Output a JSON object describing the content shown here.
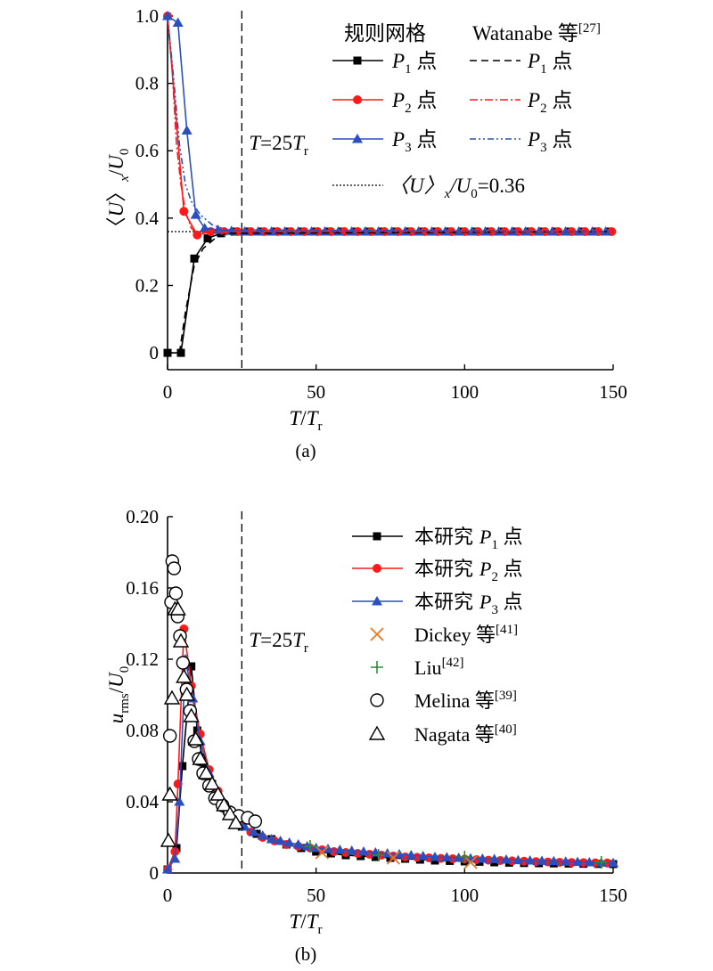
{
  "chart_data": [
    {
      "type": "line",
      "panel_label": "(a)",
      "xlim": [
        0,
        150
      ],
      "ylim": [
        -0.05,
        1.0
      ],
      "xticks": [
        0,
        50,
        100,
        150
      ],
      "yticks": [
        0,
        0.2,
        0.4,
        0.6,
        0.8,
        1.0
      ],
      "xtick_labels": [
        "0",
        "50",
        "100",
        "150"
      ],
      "ytick_labels": [
        "0",
        "0.2",
        "0.4",
        "0.6",
        "0.8",
        "1.0"
      ],
      "xlabel": {
        "main": "T",
        "sep": "/",
        "sub_base": "T",
        "sub": "r"
      },
      "ylabel": {
        "open": "〈",
        "main": "U",
        "close": "〉",
        "sub": "x",
        "sep": "/",
        "base": "U",
        "base_sub": "0"
      },
      "vline": {
        "x": 25,
        "label_main": "T",
        "label_mid": "=25",
        "label_sub_base": "T",
        "label_sub": "r"
      },
      "hline": {
        "y": 0.36,
        "legend_prefix": "〈U〉",
        "legend_sub": "x",
        "legend_mid": "/U",
        "legend_sub2": "0",
        "legend_suffix": "=0.36"
      },
      "legend_headers": {
        "left": "规则网格",
        "right_main": "Watanabe 等",
        "right_sup": "[27]"
      },
      "series": [
        {
          "name": "P1 点",
          "legend_main": "P",
          "legend_sub": "1",
          "legend_suffix": " 点",
          "color": "#000000",
          "marker": "square",
          "x": [
            0,
            4.5,
            9,
            13.5,
            18,
            22.5,
            27,
            31.5,
            36,
            40.5,
            45,
            49.5,
            54,
            58.5,
            63,
            67.5,
            72,
            76.5,
            81,
            85.5,
            90,
            94.5,
            99,
            103.5,
            108,
            112.5,
            117,
            121.5,
            126,
            130.5,
            135,
            139.5,
            144,
            148.5
          ],
          "y": [
            0,
            0,
            0.28,
            0.34,
            0.355,
            0.36,
            0.36,
            0.36,
            0.36,
            0.36,
            0.36,
            0.36,
            0.36,
            0.36,
            0.36,
            0.36,
            0.36,
            0.36,
            0.36,
            0.36,
            0.36,
            0.36,
            0.36,
            0.36,
            0.36,
            0.36,
            0.36,
            0.36,
            0.36,
            0.36,
            0.36,
            0.36,
            0.36,
            0.36
          ]
        },
        {
          "name": "P2 点",
          "legend_main": "P",
          "legend_sub": "2",
          "legend_suffix": " 点",
          "color": "#ff1a1a",
          "marker": "circle",
          "x": [
            0,
            5.5,
            10,
            14.5,
            19,
            23.5,
            28,
            32.5,
            37,
            41.5,
            46,
            50.5,
            55,
            59.5,
            64,
            68.5,
            73,
            77.5,
            82,
            86.5,
            91,
            95.5,
            100,
            104.5,
            109,
            113.5,
            118,
            122.5,
            127,
            131.5,
            136,
            140.5,
            145,
            149.5
          ],
          "y": [
            1.0,
            0.42,
            0.35,
            0.36,
            0.36,
            0.36,
            0.36,
            0.36,
            0.36,
            0.36,
            0.36,
            0.36,
            0.36,
            0.36,
            0.36,
            0.36,
            0.36,
            0.36,
            0.36,
            0.36,
            0.36,
            0.36,
            0.36,
            0.36,
            0.36,
            0.36,
            0.36,
            0.36,
            0.36,
            0.36,
            0.36,
            0.36,
            0.36,
            0.36
          ]
        },
        {
          "name": "P3 点",
          "legend_main": "P",
          "legend_sub": "3",
          "legend_suffix": " 点",
          "color": "#2b4fbf",
          "marker": "triangle",
          "x": [
            0,
            3.5,
            6.5,
            9.5,
            12.5,
            17,
            21.5,
            26,
            30.5,
            35,
            39.5,
            44,
            48.5,
            53,
            57.5,
            62,
            66.5,
            71,
            75.5,
            80,
            84.5,
            89,
            93.5,
            98,
            102.5,
            107,
            111.5,
            116,
            120.5,
            125,
            129.5,
            134,
            138.5,
            143,
            147.5
          ],
          "y": [
            1.0,
            0.98,
            0.66,
            0.41,
            0.37,
            0.365,
            0.362,
            0.36,
            0.36,
            0.36,
            0.36,
            0.36,
            0.36,
            0.36,
            0.36,
            0.36,
            0.36,
            0.36,
            0.36,
            0.36,
            0.36,
            0.36,
            0.36,
            0.36,
            0.36,
            0.36,
            0.36,
            0.36,
            0.36,
            0.36,
            0.36,
            0.36,
            0.36,
            0.36,
            0.36
          ]
        },
        {
          "name": "Watanabe P1 点",
          "legend_main": "P",
          "legend_sub": "1",
          "legend_suffix": " 点",
          "color": "#000000",
          "dash": "8,5",
          "x": [
            4,
            6,
            9,
            12,
            16,
            20,
            150
          ],
          "y": [
            0.0,
            0.12,
            0.26,
            0.31,
            0.34,
            0.355,
            0.36
          ]
        },
        {
          "name": "Watanabe P2 点",
          "legend_main": "P",
          "legend_sub": "2",
          "legend_suffix": " 点",
          "color": "#ff1a1a",
          "dash": "9,3,2,3",
          "x": [
            0,
            1.5,
            3,
            4.5,
            6,
            8,
            10,
            14,
            150
          ],
          "y": [
            1.0,
            0.85,
            0.62,
            0.5,
            0.42,
            0.37,
            0.355,
            0.36,
            0.36
          ]
        },
        {
          "name": "Watanabe P3 点",
          "legend_main": "P",
          "legend_sub": "3",
          "legend_suffix": " 点",
          "color": "#2b4fbf",
          "dash": "7,3,2,3,2,3",
          "x": [
            0,
            2,
            4,
            6,
            8,
            11,
            15,
            20,
            150
          ],
          "y": [
            1.0,
            0.82,
            0.62,
            0.5,
            0.45,
            0.41,
            0.38,
            0.365,
            0.36
          ]
        }
      ]
    },
    {
      "type": "line",
      "panel_label": "(b)",
      "xlim": [
        0,
        150
      ],
      "ylim": [
        0,
        0.2
      ],
      "xticks": [
        0,
        50,
        100,
        150
      ],
      "yticks": [
        0,
        0.04,
        0.08,
        0.12,
        0.16,
        0.2
      ],
      "xtick_labels": [
        "0",
        "50",
        "100",
        "150"
      ],
      "ytick_labels": [
        "0",
        "0.04",
        "0.08",
        "0.12",
        "0.16",
        "0.20"
      ],
      "xlabel": {
        "main": "T",
        "sep": "/",
        "sub_base": "T",
        "sub": "r"
      },
      "ylabel": {
        "main": "u",
        "sub": "rms",
        "sep": "/",
        "base": "U",
        "base_sub": "0"
      },
      "vline": {
        "x": 25,
        "label_main": "T",
        "label_mid": "=25",
        "label_sub_base": "T",
        "label_sub": "r"
      },
      "series": [
        {
          "name": "本研究 P1 点",
          "legend_prefix": "本研究 ",
          "legend_main": "P",
          "legend_sub": "1",
          "legend_suffix": " 点",
          "color": "#000000",
          "marker": "square",
          "x": [
            0,
            3,
            5,
            8,
            10,
            12,
            15,
            20,
            25,
            30,
            35,
            40,
            45,
            50,
            55,
            60,
            65,
            70,
            75,
            80,
            85,
            90,
            95,
            100,
            105,
            110,
            115,
            120,
            125,
            130,
            135,
            140,
            145,
            150
          ],
          "y": [
            0.002,
            0.014,
            0.06,
            0.116,
            0.08,
            0.062,
            0.05,
            0.035,
            0.026,
            0.022,
            0.019,
            0.016,
            0.014,
            0.012,
            0.011,
            0.01,
            0.0095,
            0.009,
            0.0085,
            0.008,
            0.0075,
            0.007,
            0.0068,
            0.0065,
            0.0063,
            0.006,
            0.0058,
            0.0056,
            0.0055,
            0.0054,
            0.0053,
            0.0052,
            0.0051,
            0.005
          ]
        },
        {
          "name": "本研究 P2 点",
          "legend_prefix": "本研究 ",
          "legend_main": "P",
          "legend_sub": "2",
          "legend_suffix": " 点",
          "color": "#ff1a1a",
          "marker": "circle",
          "x": [
            0,
            2.5,
            3.5,
            5.5,
            8,
            11,
            14,
            17,
            20,
            24,
            28,
            32,
            36,
            40,
            44,
            48,
            52,
            56,
            60,
            64,
            68,
            72,
            76,
            80,
            84,
            88,
            92,
            96,
            100,
            104,
            108,
            112,
            116,
            120,
            124,
            128,
            132,
            136,
            140,
            144,
            148
          ],
          "y": [
            0.002,
            0.012,
            0.05,
            0.137,
            0.105,
            0.078,
            0.058,
            0.046,
            0.036,
            0.028,
            0.023,
            0.02,
            0.018,
            0.016,
            0.015,
            0.014,
            0.013,
            0.012,
            0.0115,
            0.011,
            0.0105,
            0.01,
            0.0095,
            0.009,
            0.0088,
            0.0085,
            0.0082,
            0.008,
            0.0078,
            0.0075,
            0.0072,
            0.007,
            0.0068,
            0.0066,
            0.0064,
            0.0062,
            0.006,
            0.0059,
            0.0058,
            0.0057,
            0.0056
          ]
        },
        {
          "name": "本研究 P3 点",
          "legend_prefix": "本研究 ",
          "legend_main": "P",
          "legend_sub": "3",
          "legend_suffix": " 点",
          "color": "#2b4fbf",
          "marker": "triangle",
          "x": [
            0,
            2.5,
            4,
            6,
            8.5,
            11,
            14,
            17,
            20,
            23,
            26,
            29,
            32,
            35,
            38,
            41,
            44,
            47,
            50,
            54,
            58,
            62,
            66,
            70,
            74,
            78,
            82,
            86,
            90,
            94,
            98,
            102,
            106,
            110,
            114,
            118,
            122,
            126,
            130,
            134,
            138,
            142,
            146,
            150
          ],
          "y": [
            0.002,
            0.008,
            0.04,
            0.12,
            0.098,
            0.074,
            0.056,
            0.044,
            0.036,
            0.03,
            0.026,
            0.023,
            0.021,
            0.019,
            0.018,
            0.017,
            0.016,
            0.015,
            0.014,
            0.0135,
            0.013,
            0.0125,
            0.012,
            0.0115,
            0.011,
            0.0105,
            0.01,
            0.0095,
            0.009,
            0.0088,
            0.0085,
            0.0082,
            0.008,
            0.0078,
            0.0075,
            0.0072,
            0.007,
            0.0068,
            0.0066,
            0.0064,
            0.0062,
            0.006,
            0.0058,
            0.0056
          ]
        },
        {
          "name": "Dickey 等",
          "legend_main": "Dickey 等",
          "legend_sup": "[41]",
          "color": "#e87722",
          "marker": "x",
          "markers_only": true,
          "x": [
            52,
            76,
            102
          ],
          "y": [
            0.0115,
            0.0085,
            0.006
          ]
        },
        {
          "name": "Liu",
          "legend_main": "Liu",
          "legend_sup": "[42]",
          "color": "#2e8b3a",
          "marker": "plus",
          "markers_only": true,
          "x": [
            48,
            71,
            100,
            146
          ],
          "y": [
            0.015,
            0.01,
            0.009,
            0.006
          ]
        },
        {
          "name": "Melina 等",
          "legend_main": "Melina 等",
          "legend_sup": "[39]",
          "color": "#000000",
          "marker": "open-circle",
          "markers_only": true,
          "x": [
            0.8,
            1.2,
            1.6,
            2.2,
            2.8,
            3.4,
            4.2,
            5.2,
            6.4,
            7.6,
            9,
            10.5,
            12,
            14,
            16,
            18.5,
            21,
            24,
            27,
            29.5
          ],
          "y": [
            0.077,
            0.152,
            0.175,
            0.171,
            0.157,
            0.144,
            0.133,
            0.118,
            0.103,
            0.091,
            0.074,
            0.064,
            0.056,
            0.049,
            0.042,
            0.038,
            0.034,
            0.032,
            0.031,
            0.029
          ]
        },
        {
          "name": "Nagata 等",
          "legend_main": "Nagata 等",
          "legend_sup": "[40]",
          "color": "#000000",
          "marker": "open-triangle",
          "markers_only": true,
          "x": [
            0.3,
            0.8,
            1.5,
            2.5,
            3.5,
            4.5,
            5.5,
            6.5,
            8,
            9.5,
            11,
            13,
            15,
            17,
            19,
            21,
            23
          ],
          "y": [
            0.018,
            0.044,
            0.098,
            0.148,
            0.148,
            0.13,
            0.11,
            0.1,
            0.088,
            0.075,
            0.064,
            0.056,
            0.05,
            0.044,
            0.038,
            0.033,
            0.028
          ]
        }
      ]
    }
  ]
}
